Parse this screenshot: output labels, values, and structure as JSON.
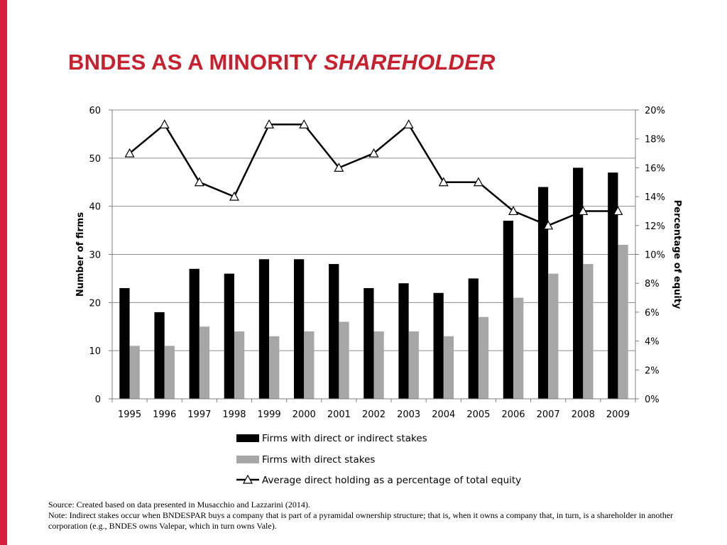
{
  "slide": {
    "title_main": "BNDES AS A MINORITY ",
    "title_italic": "SHAREHOLDER",
    "accent_color": "#d6203d",
    "title_color": "#c8202f"
  },
  "footnote": {
    "source": "Source: Created based on data presented in Musacchio and Lazzarini (2014).",
    "note": "Note: Indirect stakes occur when BNDESPAR buys a company that is part of a pyramidal ownership structure; that is, when it owns a company that, in turn, is a shareholder in another corporation (e.g., BNDES owns Valepar, which in turn owns Vale)."
  },
  "chart_data": {
    "type": "bar",
    "categories": [
      "1995",
      "1996",
      "1997",
      "1998",
      "1999",
      "2000",
      "2001",
      "2002",
      "2003",
      "2004",
      "2005",
      "2006",
      "2007",
      "2008",
      "2009"
    ],
    "series": [
      {
        "name": "Firms with direct or indirect stakes",
        "type": "bar",
        "axis": "left",
        "color": "#000000",
        "values": [
          23,
          18,
          27,
          26,
          29,
          29,
          28,
          23,
          24,
          22,
          25,
          37,
          44,
          48,
          47
        ]
      },
      {
        "name": "Firms with direct stakes",
        "type": "bar",
        "axis": "left",
        "color": "#a6a6a6",
        "values": [
          11,
          11,
          15,
          14,
          13,
          14,
          16,
          14,
          14,
          13,
          17,
          21,
          26,
          28,
          32
        ]
      },
      {
        "name": "Average direct holding as a percentage of total equity",
        "type": "line",
        "axis": "right",
        "color": "#000000",
        "marker": "triangle",
        "values": [
          17,
          19,
          15,
          14,
          19,
          19,
          16,
          17,
          19,
          15,
          15,
          13,
          12,
          13,
          13
        ]
      }
    ],
    "y_left": {
      "label": "Number of firms",
      "range": [
        0,
        60
      ],
      "ticks": [
        "0",
        "10",
        "20",
        "30",
        "40",
        "50",
        "60"
      ]
    },
    "y_right": {
      "label": "Percentage of equity",
      "range": [
        0,
        20
      ],
      "ticks": [
        "0%",
        "2%",
        "4%",
        "6%",
        "8%",
        "10%",
        "12%",
        "14%",
        "16%",
        "18%",
        "20%"
      ]
    },
    "grid": true,
    "legend": "bottom"
  }
}
